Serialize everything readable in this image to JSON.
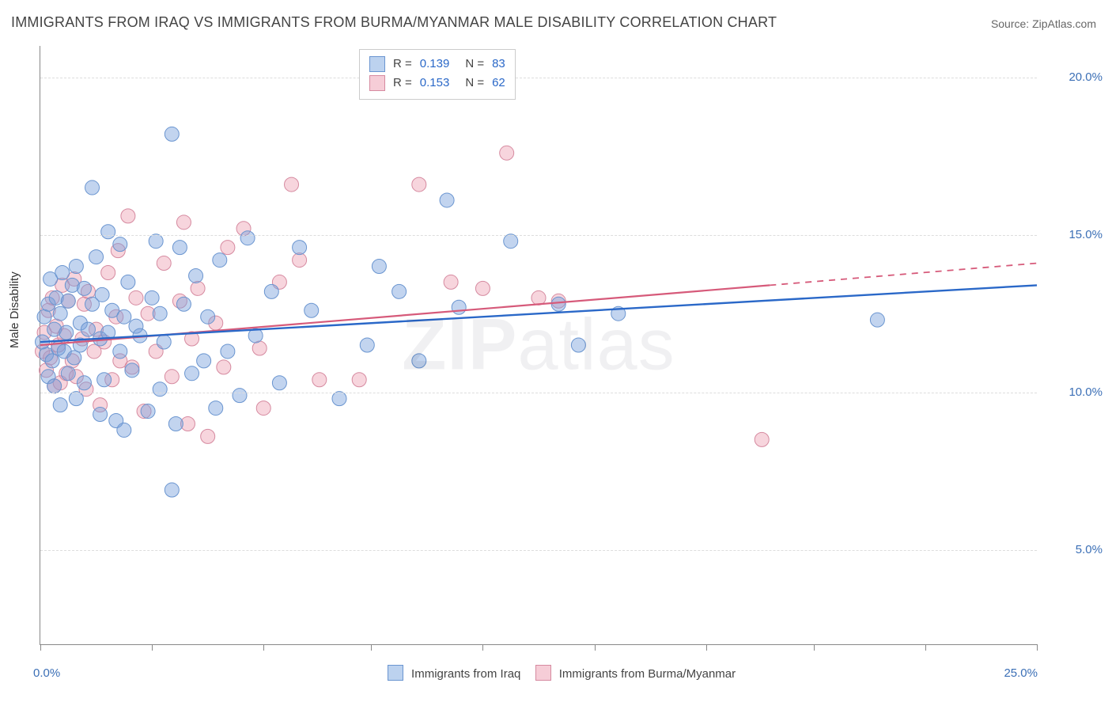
{
  "title": "IMMIGRANTS FROM IRAQ VS IMMIGRANTS FROM BURMA/MYANMAR MALE DISABILITY CORRELATION CHART",
  "source": "Source: ZipAtlas.com",
  "watermark_a": "ZIP",
  "watermark_b": "atlas",
  "ylabel": "Male Disability",
  "chart": {
    "type": "scatter",
    "xlim": [
      0.0,
      25.0
    ],
    "ylim": [
      2.0,
      21.0
    ],
    "yticks": [
      5.0,
      10.0,
      15.0,
      20.0
    ],
    "ytick_labels": [
      "5.0%",
      "10.0%",
      "15.0%",
      "20.0%"
    ],
    "xtick_positions": [
      0.0,
      2.8,
      5.6,
      8.3,
      11.1,
      13.9,
      16.7,
      19.4,
      22.2,
      25.0
    ],
    "x0_label": "0.0%",
    "xmax_label": "25.0%",
    "background_color": "#ffffff",
    "grid_color": "#dddddd",
    "marker_radius": 9,
    "series": [
      {
        "name": "Immigrants from Iraq",
        "color_fill": "rgba(120,160,220,0.45)",
        "color_stroke": "#6a95d0",
        "swatch_fill": "#bcd2ef",
        "swatch_border": "#6a95d0",
        "R": "0.139",
        "N": "83",
        "trend": {
          "x1": 0.0,
          "y1": 11.6,
          "x2": 25.0,
          "y2": 13.4,
          "color": "#2a68c8",
          "width": 2.4,
          "dash_from": 25.0
        },
        "points": [
          [
            0.05,
            11.6
          ],
          [
            0.1,
            12.4
          ],
          [
            0.15,
            11.2
          ],
          [
            0.2,
            12.8
          ],
          [
            0.2,
            10.5
          ],
          [
            0.25,
            13.6
          ],
          [
            0.3,
            11.0
          ],
          [
            0.35,
            12.0
          ],
          [
            0.35,
            10.2
          ],
          [
            0.4,
            13.0
          ],
          [
            0.45,
            11.4
          ],
          [
            0.5,
            9.6
          ],
          [
            0.5,
            12.5
          ],
          [
            0.55,
            13.8
          ],
          [
            0.6,
            11.3
          ],
          [
            0.65,
            11.9
          ],
          [
            0.7,
            10.6
          ],
          [
            0.7,
            12.9
          ],
          [
            0.8,
            13.4
          ],
          [
            0.85,
            11.1
          ],
          [
            0.9,
            14.0
          ],
          [
            0.9,
            9.8
          ],
          [
            1.0,
            12.2
          ],
          [
            1.0,
            11.5
          ],
          [
            1.1,
            13.3
          ],
          [
            1.1,
            10.3
          ],
          [
            1.2,
            12.0
          ],
          [
            1.3,
            16.5
          ],
          [
            1.3,
            12.8
          ],
          [
            1.4,
            14.3
          ],
          [
            1.5,
            11.7
          ],
          [
            1.5,
            9.3
          ],
          [
            1.55,
            13.1
          ],
          [
            1.6,
            10.4
          ],
          [
            1.7,
            15.1
          ],
          [
            1.7,
            11.9
          ],
          [
            1.8,
            12.6
          ],
          [
            1.9,
            9.1
          ],
          [
            2.0,
            14.7
          ],
          [
            2.0,
            11.3
          ],
          [
            2.1,
            12.4
          ],
          [
            2.1,
            8.8
          ],
          [
            2.2,
            13.5
          ],
          [
            2.3,
            10.7
          ],
          [
            2.4,
            12.1
          ],
          [
            2.5,
            11.8
          ],
          [
            2.7,
            9.4
          ],
          [
            2.8,
            13.0
          ],
          [
            2.9,
            14.8
          ],
          [
            3.0,
            10.1
          ],
          [
            3.0,
            12.5
          ],
          [
            3.1,
            11.6
          ],
          [
            3.3,
            6.9
          ],
          [
            3.3,
            18.2
          ],
          [
            3.4,
            9.0
          ],
          [
            3.5,
            14.6
          ],
          [
            3.6,
            12.8
          ],
          [
            3.8,
            10.6
          ],
          [
            3.9,
            13.7
          ],
          [
            4.1,
            11.0
          ],
          [
            4.2,
            12.4
          ],
          [
            4.4,
            9.5
          ],
          [
            4.5,
            14.2
          ],
          [
            4.7,
            11.3
          ],
          [
            5.0,
            9.9
          ],
          [
            5.2,
            14.9
          ],
          [
            5.4,
            11.8
          ],
          [
            5.8,
            13.2
          ],
          [
            6.0,
            10.3
          ],
          [
            6.5,
            14.6
          ],
          [
            6.8,
            12.6
          ],
          [
            7.5,
            9.8
          ],
          [
            8.2,
            11.5
          ],
          [
            8.5,
            14.0
          ],
          [
            9.0,
            13.2
          ],
          [
            9.5,
            11.0
          ],
          [
            10.2,
            16.1
          ],
          [
            10.5,
            12.7
          ],
          [
            11.8,
            14.8
          ],
          [
            13.0,
            12.8
          ],
          [
            13.5,
            11.5
          ],
          [
            14.5,
            12.5
          ],
          [
            21.0,
            12.3
          ]
        ]
      },
      {
        "name": "Immigrants from Burma/Myanmar",
        "color_fill": "rgba(235,150,170,0.40)",
        "color_stroke": "#d68aa0",
        "swatch_fill": "#f6cdd7",
        "swatch_border": "#d68aa0",
        "R": "0.153",
        "N": "62",
        "trend": {
          "x1": 0.0,
          "y1": 11.5,
          "x2": 18.3,
          "y2": 13.4,
          "color": "#d65a7a",
          "width": 2.2,
          "dash_from": 18.3,
          "dash_x2": 25.0,
          "dash_y2": 14.1
        },
        "points": [
          [
            0.05,
            11.3
          ],
          [
            0.1,
            11.9
          ],
          [
            0.15,
            10.7
          ],
          [
            0.2,
            12.6
          ],
          [
            0.25,
            11.1
          ],
          [
            0.3,
            13.0
          ],
          [
            0.35,
            10.2
          ],
          [
            0.4,
            12.1
          ],
          [
            0.45,
            11.5
          ],
          [
            0.5,
            10.3
          ],
          [
            0.55,
            13.4
          ],
          [
            0.6,
            11.8
          ],
          [
            0.65,
            10.6
          ],
          [
            0.7,
            12.9
          ],
          [
            0.8,
            11.0
          ],
          [
            0.85,
            13.6
          ],
          [
            0.9,
            10.5
          ],
          [
            1.05,
            11.7
          ],
          [
            1.1,
            12.8
          ],
          [
            1.15,
            10.1
          ],
          [
            1.2,
            13.2
          ],
          [
            1.35,
            11.3
          ],
          [
            1.4,
            12.0
          ],
          [
            1.5,
            9.6
          ],
          [
            1.6,
            11.6
          ],
          [
            1.7,
            13.8
          ],
          [
            1.8,
            10.4
          ],
          [
            1.9,
            12.4
          ],
          [
            1.95,
            14.5
          ],
          [
            2.0,
            11.0
          ],
          [
            2.2,
            15.6
          ],
          [
            2.3,
            10.8
          ],
          [
            2.4,
            13.0
          ],
          [
            2.6,
            9.4
          ],
          [
            2.7,
            12.5
          ],
          [
            2.9,
            11.3
          ],
          [
            3.1,
            14.1
          ],
          [
            3.3,
            10.5
          ],
          [
            3.5,
            12.9
          ],
          [
            3.6,
            15.4
          ],
          [
            3.7,
            9.0
          ],
          [
            3.8,
            11.7
          ],
          [
            3.95,
            13.3
          ],
          [
            4.2,
            8.6
          ],
          [
            4.4,
            12.2
          ],
          [
            4.6,
            10.8
          ],
          [
            4.7,
            14.6
          ],
          [
            5.1,
            15.2
          ],
          [
            5.5,
            11.4
          ],
          [
            5.6,
            9.5
          ],
          [
            6.0,
            13.5
          ],
          [
            6.3,
            16.6
          ],
          [
            6.5,
            14.2
          ],
          [
            7.0,
            10.4
          ],
          [
            8.0,
            10.4
          ],
          [
            9.5,
            16.6
          ],
          [
            10.3,
            13.5
          ],
          [
            11.1,
            13.3
          ],
          [
            11.7,
            17.6
          ],
          [
            12.5,
            13.0
          ],
          [
            13.0,
            12.9
          ],
          [
            18.1,
            8.5
          ]
        ]
      }
    ]
  },
  "legend_labels": {
    "R_label": "R =",
    "N_label": "N ="
  }
}
